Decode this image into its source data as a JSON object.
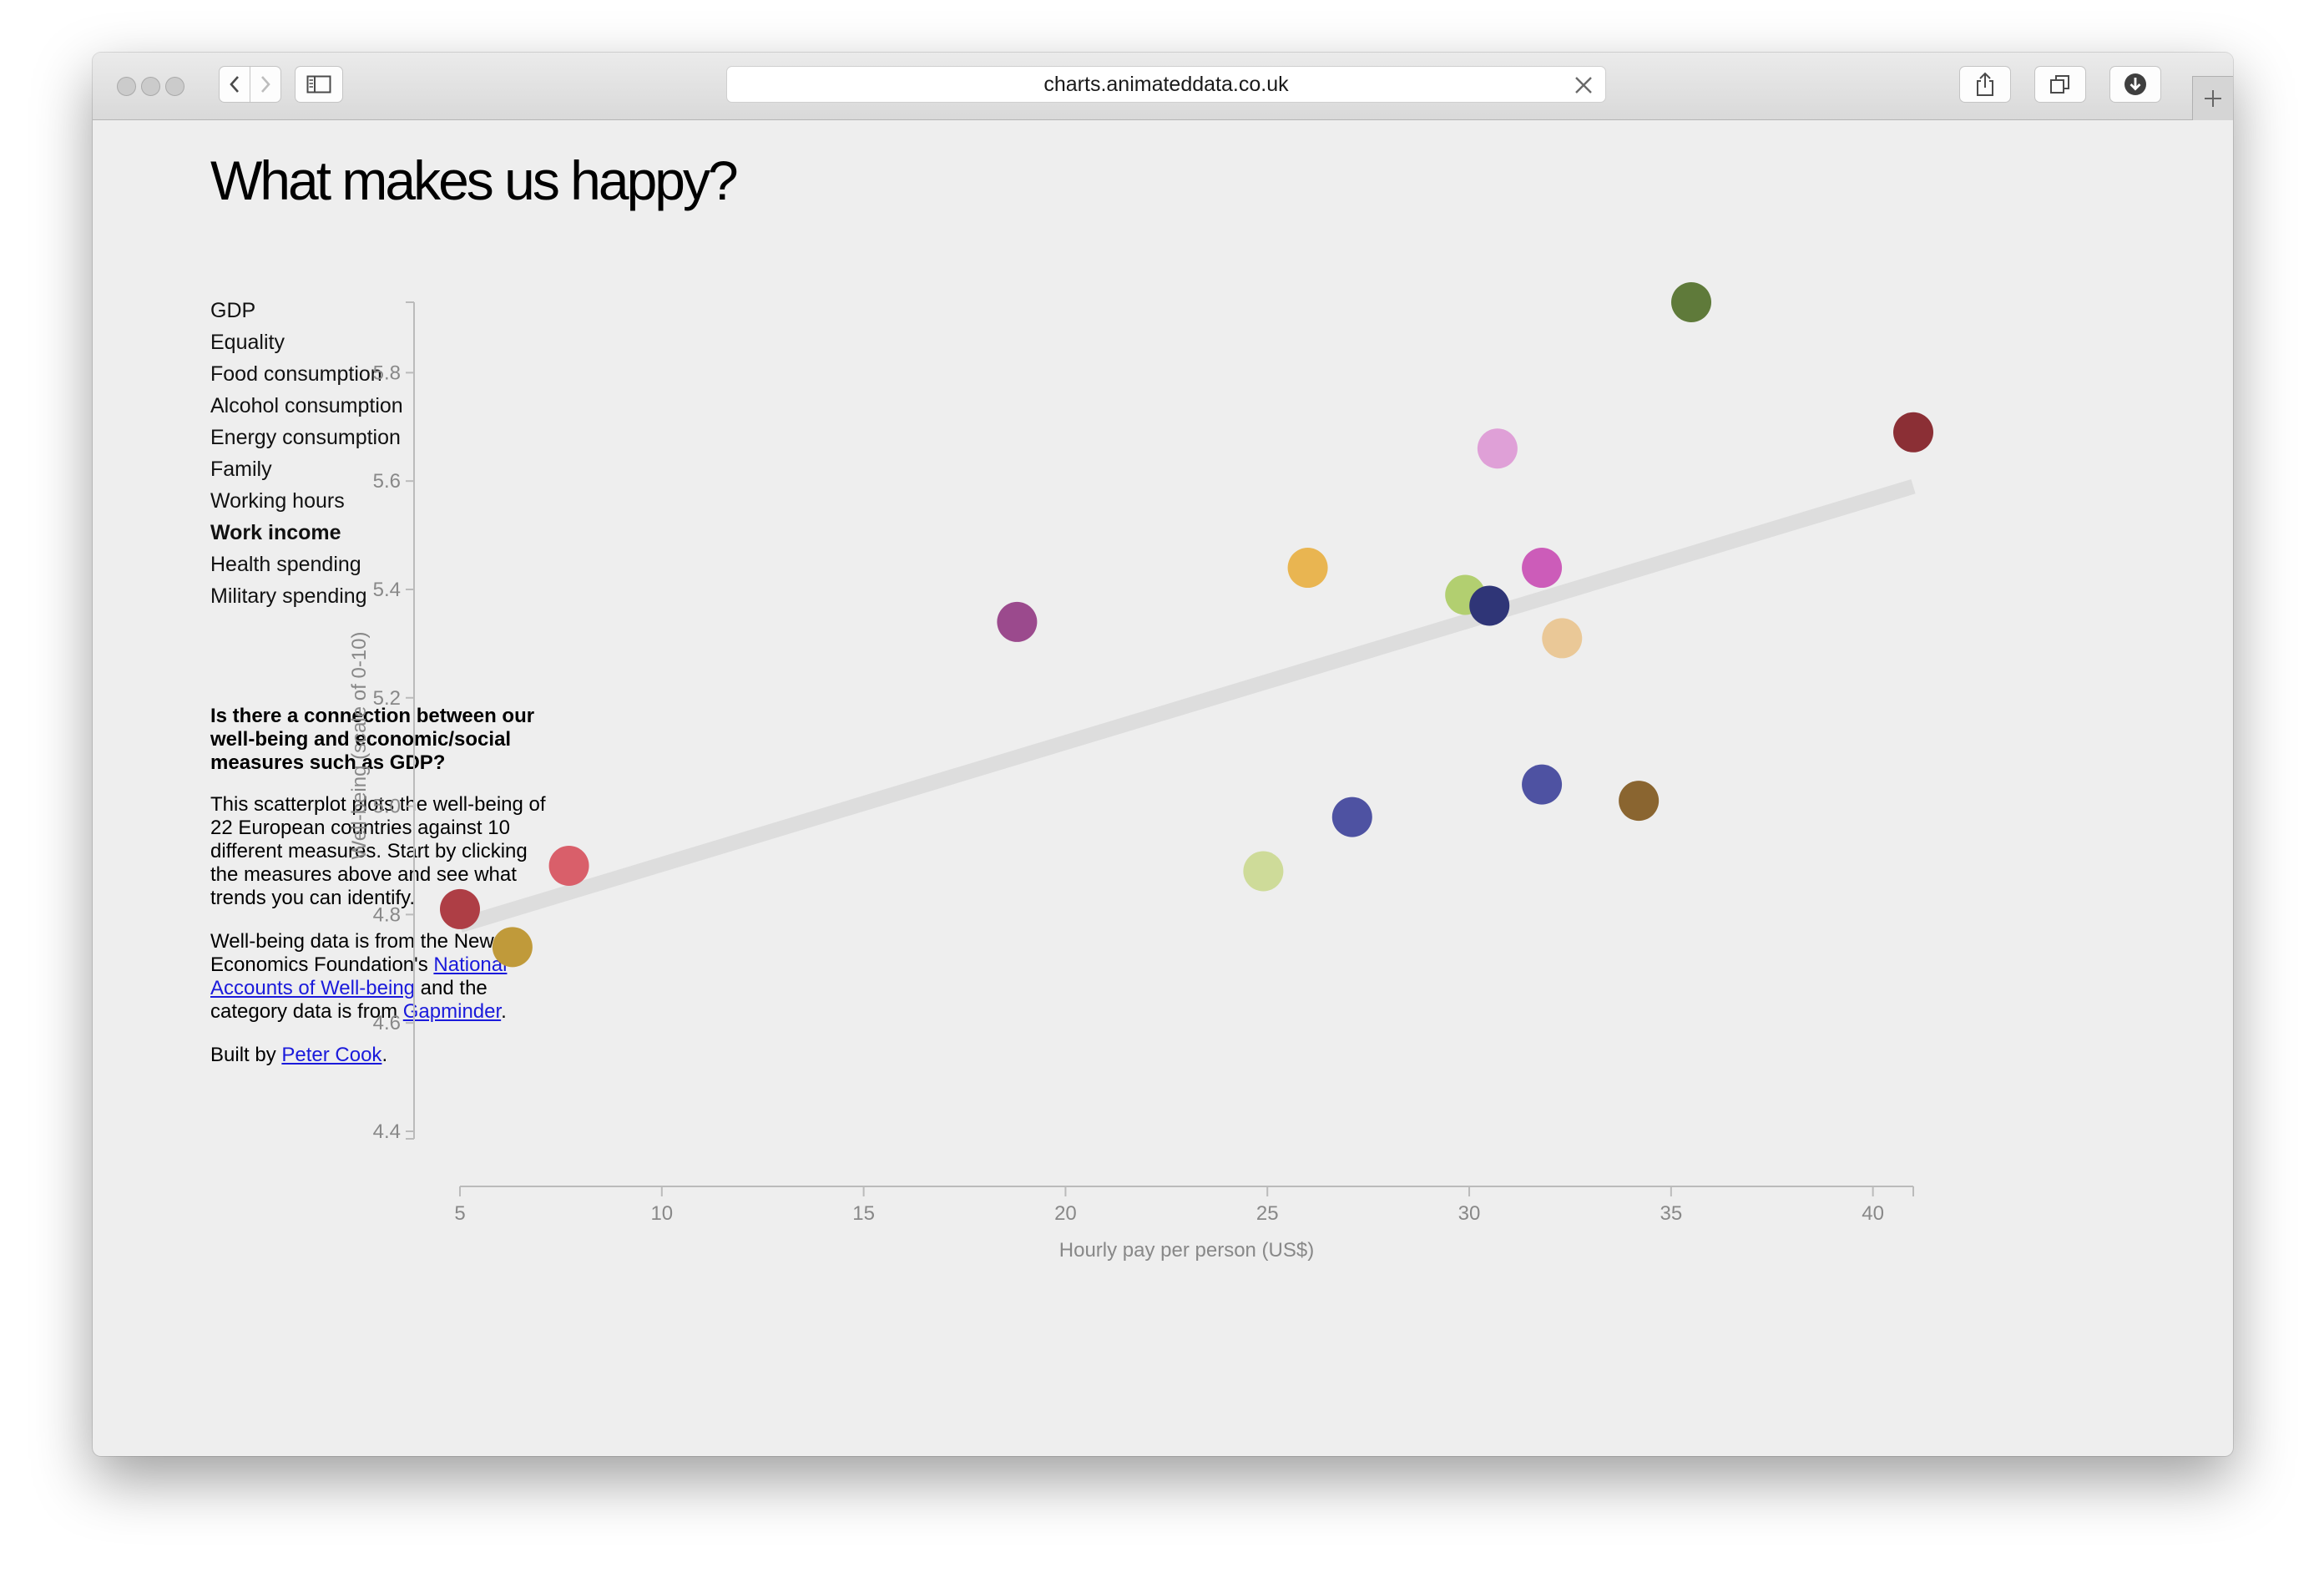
{
  "browser": {
    "url": "charts.animateddata.co.uk",
    "icons": {
      "back": "chevron-left-icon",
      "forward": "chevron-right-icon",
      "sidebar": "sidebar-icon",
      "clear": "close-icon",
      "share": "share-icon",
      "tabs": "tabs-icon",
      "downloads": "download-icon",
      "new_tab": "plus-icon"
    }
  },
  "page": {
    "title": "What makes us happy?",
    "measures": [
      {
        "label": "GDP",
        "active": false
      },
      {
        "label": "Equality",
        "active": false
      },
      {
        "label": "Food consumption",
        "active": false
      },
      {
        "label": "Alcohol consumption",
        "active": false
      },
      {
        "label": "Energy consumption",
        "active": false
      },
      {
        "label": "Family",
        "active": false
      },
      {
        "label": "Working hours",
        "active": false
      },
      {
        "label": "Work income",
        "active": true
      },
      {
        "label": "Health spending",
        "active": false
      },
      {
        "label": "Military spending",
        "active": false
      }
    ],
    "info": {
      "heading": "Is there a connection between our well-being and economic/social measures such as GDP?",
      "para1": "This scatterplot plots the well-being of 22 European countries against 10 different measures. Start by clicking the measures above and see what trends you can identify.",
      "para2_prefix": "Well-being data is from the New Economics Foundation's ",
      "para2_link1": "National Accounts of Well-being",
      "para2_middle": " and the category data is from ",
      "para2_link2": "Gapminder",
      "para2_suffix": ".",
      "para3_prefix": "Built by ",
      "para3_link": "Peter Cook",
      "para3_suffix": "."
    }
  },
  "chart_data": {
    "type": "scatter",
    "xlabel": "Hourly pay per person (US$)",
    "ylabel": "Well-being (scale of 0-10)",
    "xlim": [
      5,
      41
    ],
    "ylim": [
      4.4,
      5.93
    ],
    "x_ticks": [
      5,
      10,
      15,
      20,
      25,
      30,
      35,
      40
    ],
    "y_ticks": [
      4.4,
      4.6,
      4.8,
      5.0,
      5.2,
      5.4,
      5.6,
      5.8
    ],
    "trend_line": {
      "x": [
        5,
        41
      ],
      "y": [
        4.78,
        5.59
      ],
      "color": "#dddddd"
    },
    "grid": false,
    "points": [
      {
        "x": 35.5,
        "y": 5.93,
        "color": "#5f7a3a"
      },
      {
        "x": 41.0,
        "y": 5.69,
        "color": "#8b2f35"
      },
      {
        "x": 30.7,
        "y": 5.66,
        "color": "#dfa0d7"
      },
      {
        "x": 26.0,
        "y": 5.44,
        "color": "#e9b551"
      },
      {
        "x": 31.8,
        "y": 5.44,
        "color": "#cc5cb9"
      },
      {
        "x": 29.9,
        "y": 5.39,
        "color": "#b2cf70"
      },
      {
        "x": 30.5,
        "y": 5.37,
        "color": "#2f3577"
      },
      {
        "x": 32.3,
        "y": 5.31,
        "color": "#eac897"
      },
      {
        "x": 18.8,
        "y": 5.34,
        "color": "#9b4a8d"
      },
      {
        "x": 31.8,
        "y": 5.04,
        "color": "#4e52a2"
      },
      {
        "x": 34.2,
        "y": 5.01,
        "color": "#8a6530"
      },
      {
        "x": 27.1,
        "y": 4.98,
        "color": "#4e52a2"
      },
      {
        "x": 24.9,
        "y": 4.88,
        "color": "#cedb99"
      },
      {
        "x": 7.7,
        "y": 4.89,
        "color": "#d95f6a"
      },
      {
        "x": 5.0,
        "y": 4.81,
        "color": "#ae3e45"
      },
      {
        "x": 6.3,
        "y": 4.74,
        "color": "#c09a3a"
      }
    ]
  }
}
